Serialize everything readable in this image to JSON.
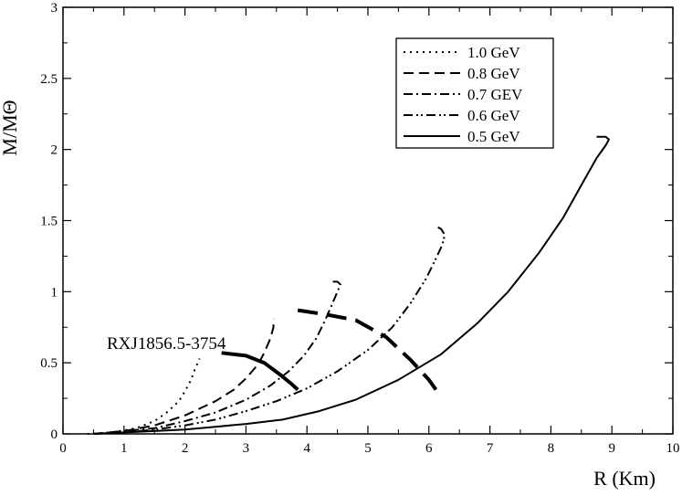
{
  "chart_data": {
    "type": "line",
    "title": "",
    "xlabel": "R (Km)",
    "ylabel": "M/MΘ",
    "xlim": [
      0,
      10
    ],
    "ylim": [
      0,
      3
    ],
    "xticks": [
      0,
      1,
      2,
      3,
      4,
      5,
      6,
      7,
      8,
      9,
      10
    ],
    "yticks": [
      0,
      0.5,
      1,
      1.5,
      2,
      2.5,
      3
    ],
    "xtick_labels": [
      "0",
      "1",
      "2",
      "3",
      "4",
      "5",
      "6",
      "7",
      "8",
      "9",
      "10"
    ],
    "ytick_labels": [
      "0",
      "0.5",
      "1",
      "1.5",
      "2",
      "2.5",
      "3"
    ],
    "grid": false,
    "legend_position": "top-right",
    "series": [
      {
        "name": "1.0 GeV",
        "style": "dotted",
        "color": "#000000",
        "x": [
          0.4,
          0.8,
          1.2,
          1.5,
          1.7,
          1.9,
          2.0,
          2.1,
          2.15,
          2.2,
          2.24
        ],
        "y": [
          0.0,
          0.01,
          0.04,
          0.09,
          0.15,
          0.23,
          0.3,
          0.38,
          0.44,
          0.49,
          0.53
        ]
      },
      {
        "name": "0.8 GeV",
        "style": "dashed",
        "color": "#000000",
        "x": [
          0.5,
          1.0,
          1.5,
          2.0,
          2.5,
          2.8,
          3.0,
          3.2,
          3.3,
          3.4,
          3.45,
          3.45
        ],
        "y": [
          0.0,
          0.02,
          0.06,
          0.13,
          0.23,
          0.31,
          0.39,
          0.49,
          0.57,
          0.67,
          0.75,
          0.81
        ]
      },
      {
        "name": "0.7 GEV",
        "style": "dash-dot",
        "color": "#000000",
        "x": [
          0.5,
          1.0,
          1.5,
          2.0,
          2.5,
          3.0,
          3.4,
          3.7,
          3.95,
          4.15,
          4.3,
          4.42,
          4.5,
          4.55,
          4.5,
          4.4
        ],
        "y": [
          0.0,
          0.02,
          0.04,
          0.09,
          0.15,
          0.24,
          0.34,
          0.44,
          0.55,
          0.67,
          0.8,
          0.92,
          1.0,
          1.05,
          1.07,
          1.07
        ]
      },
      {
        "name": "0.6 GeV",
        "style": "dash-dot-dot",
        "color": "#000000",
        "x": [
          0.5,
          1.0,
          1.5,
          2.0,
          2.5,
          3.0,
          3.5,
          4.0,
          4.5,
          5.0,
          5.4,
          5.7,
          5.95,
          6.1,
          6.22,
          6.26,
          6.2,
          6.12
        ],
        "y": [
          0.0,
          0.01,
          0.03,
          0.06,
          0.1,
          0.16,
          0.23,
          0.32,
          0.44,
          0.59,
          0.75,
          0.92,
          1.09,
          1.22,
          1.33,
          1.4,
          1.44,
          1.46
        ]
      },
      {
        "name": "0.5 GeV",
        "style": "solid",
        "color": "#000000",
        "x": [
          0.5,
          1.0,
          1.5,
          2.0,
          2.5,
          3.0,
          3.6,
          4.2,
          4.8,
          5.5,
          6.2,
          6.8,
          7.3,
          7.8,
          8.2,
          8.5,
          8.75,
          8.9,
          8.95,
          8.9,
          8.75
        ],
        "y": [
          0.0,
          0.01,
          0.02,
          0.03,
          0.05,
          0.07,
          0.1,
          0.16,
          0.24,
          0.38,
          0.56,
          0.78,
          1.0,
          1.27,
          1.52,
          1.75,
          1.94,
          2.03,
          2.07,
          2.09,
          2.09
        ]
      }
    ],
    "constraint_curve": {
      "label": "RXJ1856.5-3754",
      "style": "thick-dashed",
      "solid_part": {
        "x": [
          2.6,
          3.0,
          3.3,
          3.55,
          3.75,
          3.85
        ],
        "y": [
          0.57,
          0.55,
          0.5,
          0.42,
          0.35,
          0.31
        ]
      },
      "dashed_part": {
        "x": [
          3.85,
          4.3,
          4.8,
          5.3,
          5.7,
          6.0,
          6.15
        ],
        "y": [
          0.87,
          0.84,
          0.8,
          0.68,
          0.52,
          0.38,
          0.29
        ]
      }
    }
  }
}
